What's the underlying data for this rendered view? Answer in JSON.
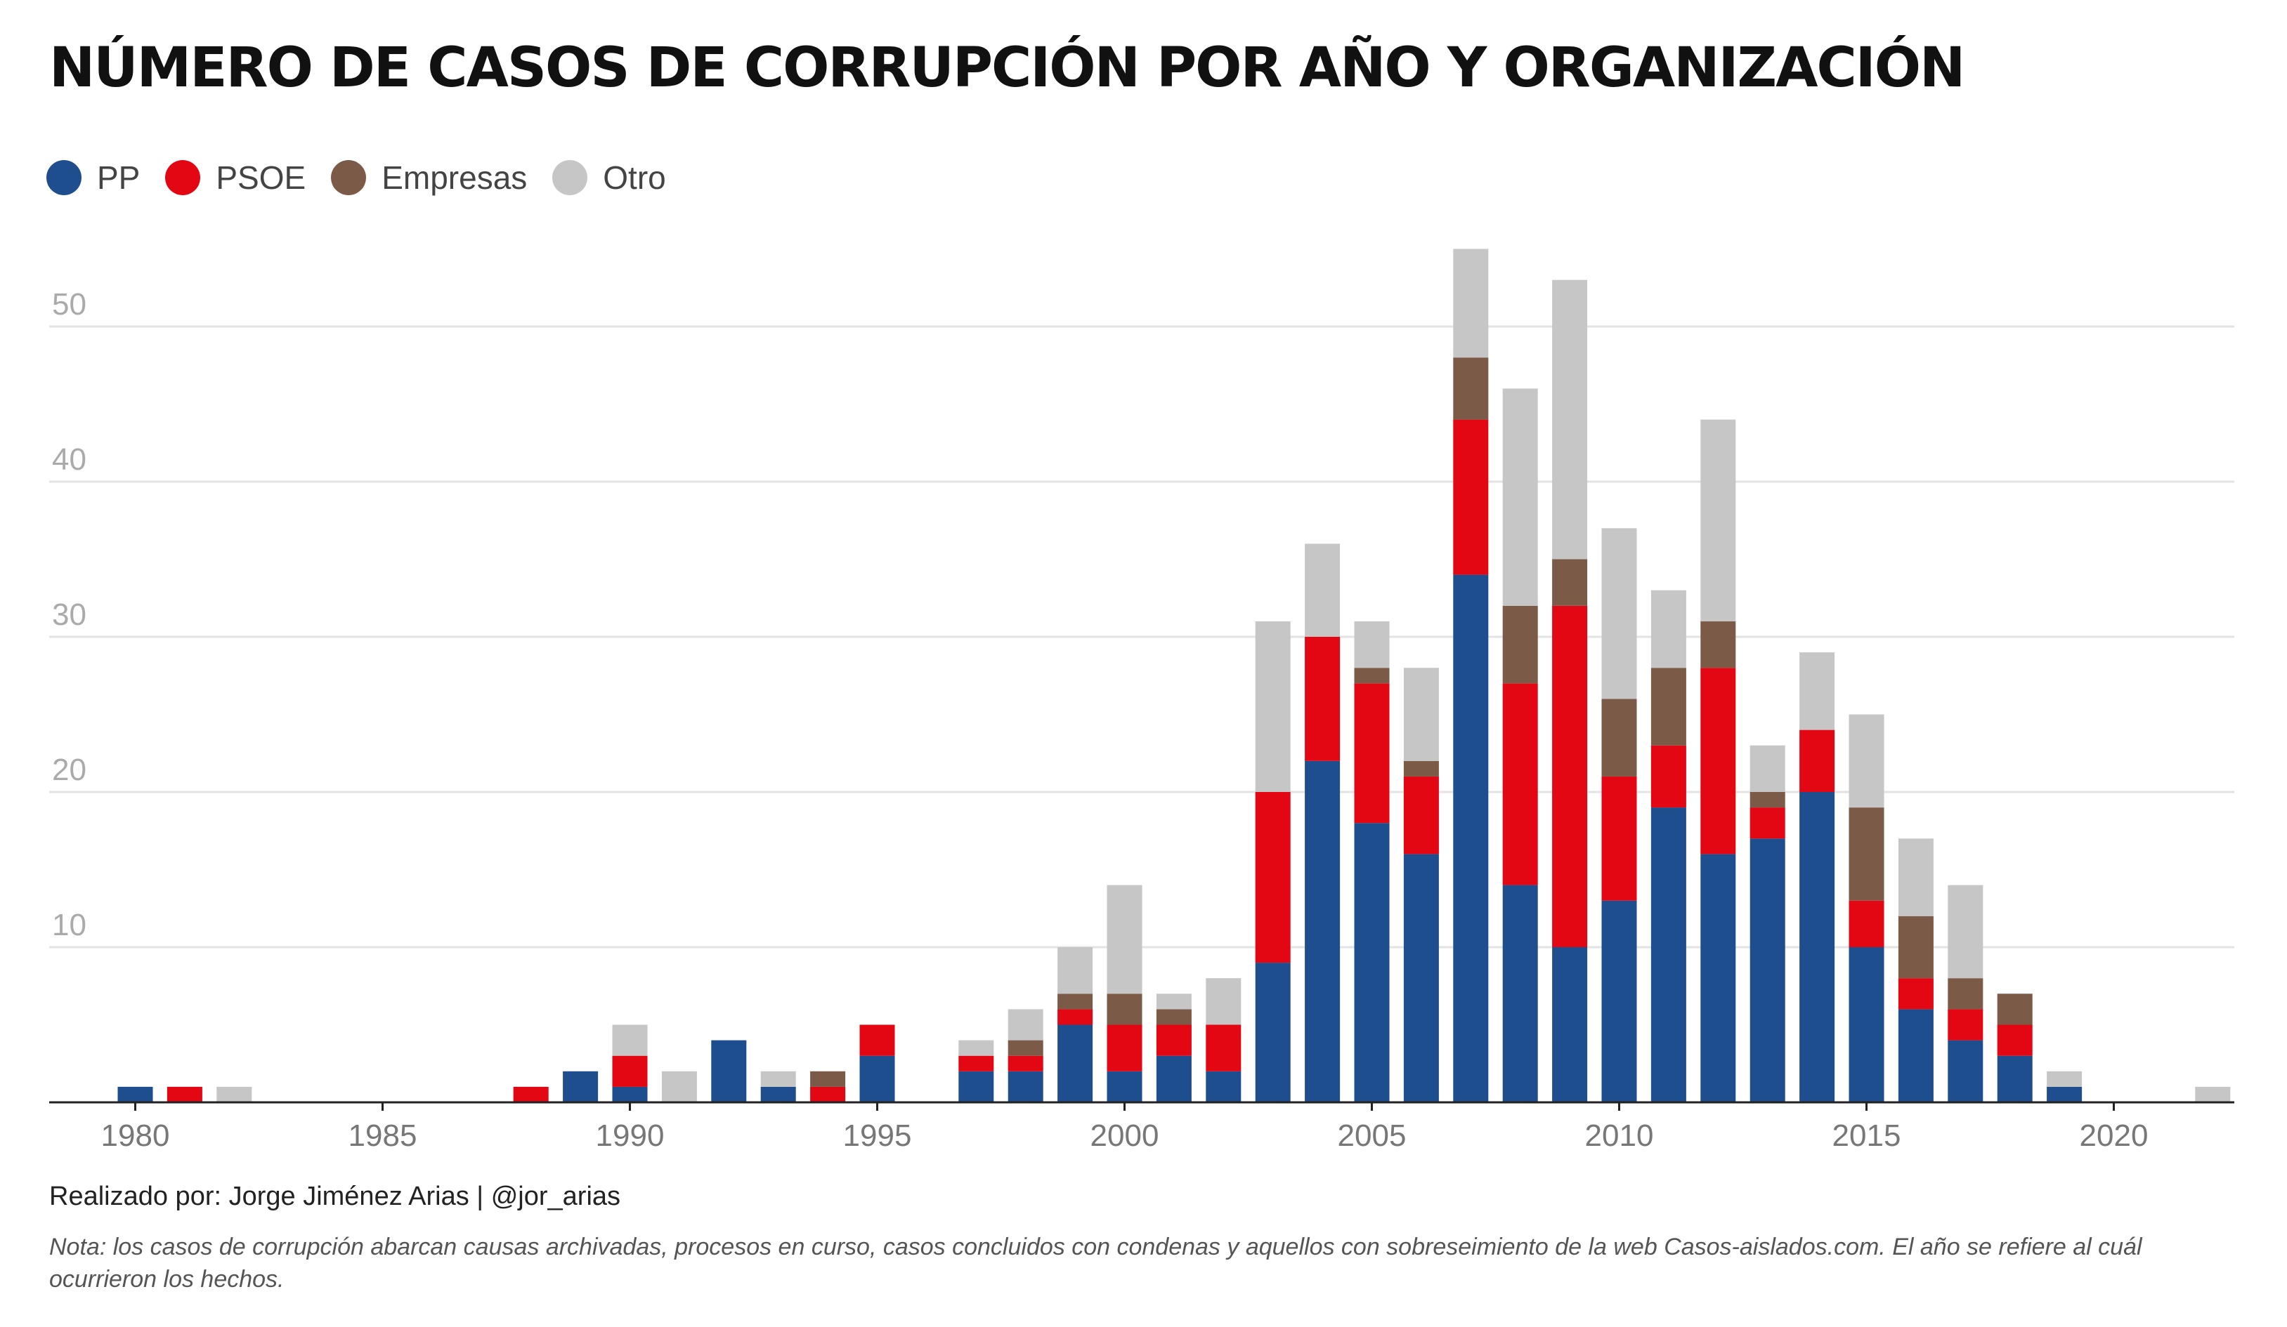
{
  "title": "NÚMERO DE CASOS DE CORRUPCIÓN POR AÑO Y ORGANIZACIÓN",
  "credit": "Realizado por: Jorge Jiménez Arias | @jor_arias",
  "note": "Nota: los casos de corrupción abarcan causas archivadas, procesos en curso, casos concluidos con condenas y aquellos con sobreseimiento de la web Casos-aislados.com. El año se refiere al cuál ocurrieron los hechos.",
  "legend": [
    {
      "label": "PP",
      "color": "#1f4e8f"
    },
    {
      "label": "PSOE",
      "color": "#e30613"
    },
    {
      "label": "Empresas",
      "color": "#7b5a48"
    },
    {
      "label": "Otro",
      "color": "#c6c6c6"
    }
  ],
  "chart_data": {
    "type": "bar",
    "stacked": true,
    "title": "NÚMERO DE CASOS DE CORRUPCIÓN POR AÑO Y ORGANIZACIÓN",
    "xlabel": "",
    "ylabel": "",
    "xlim": [
      1980,
      2022
    ],
    "ylim": [
      0,
      55
    ],
    "xticks": [
      "1980",
      "1985",
      "1990",
      "1995",
      "2000",
      "2005",
      "2010",
      "2015",
      "2020"
    ],
    "yticks": [
      "10",
      "20",
      "30",
      "40",
      "50"
    ],
    "grid": true,
    "legend_position": "top-left",
    "x": [
      1980,
      1981,
      1982,
      1988,
      1989,
      1990,
      1991,
      1992,
      1993,
      1994,
      1995,
      1997,
      1998,
      1999,
      2000,
      2001,
      2002,
      2003,
      2004,
      2005,
      2006,
      2007,
      2008,
      2009,
      2010,
      2011,
      2012,
      2013,
      2014,
      2015,
      2016,
      2017,
      2018,
      2019,
      2022
    ],
    "series": [
      {
        "name": "PP",
        "color": "#1f4e8f",
        "values": [
          1,
          0,
          0,
          0,
          2,
          1,
          0,
          4,
          1,
          0,
          3,
          2,
          2,
          5,
          2,
          3,
          2,
          9,
          22,
          18,
          16,
          34,
          14,
          10,
          13,
          19,
          16,
          17,
          20,
          10,
          6,
          4,
          3,
          1,
          0
        ]
      },
      {
        "name": "PSOE",
        "color": "#e30613",
        "values": [
          0,
          1,
          0,
          1,
          0,
          2,
          0,
          0,
          0,
          1,
          2,
          1,
          1,
          1,
          3,
          2,
          3,
          11,
          8,
          9,
          5,
          10,
          13,
          22,
          8,
          4,
          12,
          2,
          4,
          3,
          2,
          2,
          2,
          0,
          0
        ]
      },
      {
        "name": "Empresas",
        "color": "#7b5a48",
        "values": [
          0,
          0,
          0,
          0,
          0,
          0,
          0,
          0,
          0,
          1,
          0,
          0,
          1,
          1,
          2,
          1,
          0,
          0,
          0,
          1,
          1,
          4,
          5,
          3,
          5,
          5,
          3,
          1,
          0,
          6,
          4,
          2,
          2,
          0,
          0
        ]
      },
      {
        "name": "Otro",
        "color": "#c6c6c6",
        "values": [
          0,
          0,
          1,
          0,
          0,
          2,
          2,
          0,
          1,
          0,
          0,
          1,
          2,
          3,
          7,
          1,
          3,
          11,
          6,
          3,
          6,
          7,
          14,
          18,
          11,
          5,
          13,
          3,
          5,
          6,
          5,
          6,
          0,
          1,
          1
        ]
      }
    ]
  }
}
